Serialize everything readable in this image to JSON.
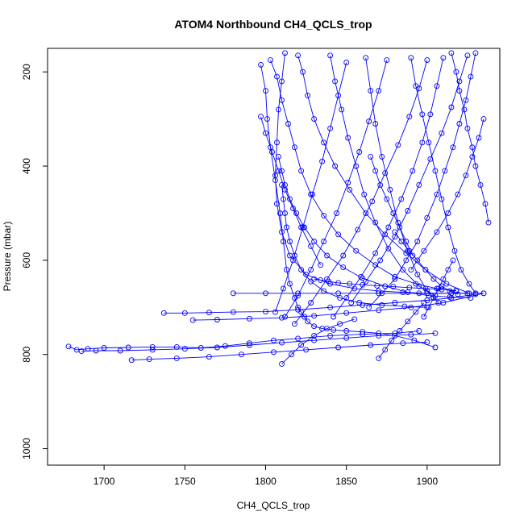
{
  "chart_data": {
    "type": "line",
    "title": "ATOM4 Northbound CH4_QCLS_trop",
    "xlabel": "CH4_QCLS_trop",
    "ylabel": "Pressure (mbar)",
    "xlim": [
      1665,
      1945
    ],
    "ylim": [
      1035,
      150
    ],
    "y_reversed": true,
    "marker": "open-circle",
    "series_color": "#0000ff",
    "x_ticks": [
      1700,
      1750,
      1800,
      1850,
      1900
    ],
    "y_ticks": [
      200,
      400,
      600,
      800,
      1000
    ],
    "x_tick_labels": [
      "1700",
      "1750",
      "1800",
      "1850",
      "1900"
    ],
    "y_tick_labels": [
      "200",
      "400",
      "600",
      "800",
      "1000"
    ],
    "series": [
      {
        "x": [
          1797,
          1800,
          1801,
          1803,
          1806,
          1809,
          1811,
          1813,
          1815,
          1818,
          1820,
          1822,
          1824,
          1826,
          1830,
          1835,
          1842,
          1850,
          1860,
          1870,
          1880,
          1892,
          1905
        ],
        "y": [
          185,
          240,
          300,
          360,
          430,
          500,
          560,
          620,
          650,
          680,
          700,
          710,
          720,
          730,
          740,
          745,
          748,
          750,
          752,
          755,
          760,
          770,
          785
        ]
      },
      {
        "x": [
          1812,
          1810,
          1808,
          1807,
          1806,
          1807,
          1810,
          1815,
          1825,
          1840,
          1855,
          1870,
          1885,
          1900,
          1915,
          1925
        ],
        "y": [
          160,
          220,
          280,
          350,
          420,
          480,
          540,
          590,
          630,
          650,
          660,
          665,
          668,
          670,
          670,
          670
        ]
      },
      {
        "x": [
          1678,
          1683,
          1690,
          1700,
          1715,
          1730,
          1745,
          1760,
          1775,
          1790,
          1805,
          1820,
          1840,
          1860,
          1880,
          1895
        ],
        "y": [
          783,
          790,
          788,
          786,
          785,
          784,
          784,
          786,
          782,
          776,
          770,
          766,
          760,
          757,
          755,
          750
        ]
      },
      {
        "x": [
          1686,
          1695,
          1710,
          1730,
          1750,
          1770,
          1790,
          1810,
          1830,
          1850,
          1870,
          1890,
          1905
        ],
        "y": [
          793,
          792,
          792,
          790,
          788,
          785,
          780,
          775,
          770,
          765,
          760,
          758,
          755
        ]
      },
      {
        "x": [
          1717,
          1728,
          1745,
          1765,
          1785,
          1805,
          1825,
          1845,
          1865,
          1885,
          1900
        ],
        "y": [
          812,
          810,
          808,
          805,
          800,
          795,
          790,
          785,
          780,
          776,
          774
        ]
      },
      {
        "x": [
          1737,
          1750,
          1765,
          1780,
          1800,
          1820,
          1840,
          1860,
          1880,
          1900,
          1915,
          1930
        ],
        "y": [
          712,
          712,
          711,
          710,
          709,
          705,
          700,
          695,
          690,
          685,
          680,
          672
        ]
      },
      {
        "x": [
          1755,
          1770,
          1790,
          1810,
          1830,
          1850,
          1870,
          1890,
          1910,
          1935
        ],
        "y": [
          727,
          726,
          724,
          722,
          718,
          712,
          706,
          700,
          690,
          670
        ]
      },
      {
        "x": [
          1780,
          1800,
          1820,
          1845,
          1870,
          1895,
          1915,
          1935
        ],
        "y": [
          670,
          670,
          670,
          670,
          670,
          670,
          670,
          670
        ]
      },
      {
        "x": [
          1803,
          1807,
          1810,
          1814,
          1818,
          1822,
          1828,
          1836,
          1845,
          1856,
          1868,
          1880,
          1893,
          1906,
          1918
        ],
        "y": [
          175,
          210,
          260,
          310,
          360,
          410,
          460,
          505,
          545,
          580,
          610,
          635,
          650,
          660,
          665
        ]
      },
      {
        "x": [
          1820,
          1823,
          1826,
          1830,
          1836,
          1843,
          1852,
          1862,
          1874,
          1887,
          1899,
          1912,
          1926
        ],
        "y": [
          165,
          200,
          250,
          300,
          350,
          400,
          450,
          500,
          545,
          585,
          620,
          650,
          670
        ]
      },
      {
        "x": [
          1840,
          1843,
          1847,
          1851,
          1856,
          1861,
          1868,
          1876,
          1885,
          1895,
          1905
        ],
        "y": [
          165,
          220,
          280,
          340,
          400,
          460,
          520,
          575,
          620,
          655,
          675
        ]
      },
      {
        "x": [
          1862,
          1865,
          1868,
          1872,
          1877,
          1882,
          1888,
          1894,
          1900,
          1907
        ],
        "y": [
          170,
          240,
          310,
          380,
          450,
          520,
          580,
          630,
          665,
          690
        ]
      },
      {
        "x": [
          1890,
          1893,
          1897,
          1901,
          1905,
          1909,
          1913,
          1917,
          1921,
          1926,
          1930
        ],
        "y": [
          170,
          230,
          290,
          350,
          410,
          470,
          530,
          580,
          620,
          650,
          670
        ]
      },
      {
        "x": [
          1915,
          1918,
          1920,
          1923,
          1925,
          1928,
          1930,
          1933,
          1936,
          1938
        ],
        "y": [
          160,
          200,
          240,
          280,
          320,
          360,
          400,
          440,
          480,
          520
        ]
      },
      {
        "x": [
          1930,
          1927,
          1924,
          1920,
          1916,
          1911,
          1906,
          1900,
          1894,
          1887,
          1880,
          1872,
          1864
        ],
        "y": [
          160,
          210,
          260,
          310,
          360,
          410,
          460,
          510,
          560,
          600,
          640,
          670,
          700
        ]
      },
      {
        "x": [
          1925,
          1920,
          1915,
          1909,
          1902,
          1895,
          1888,
          1880,
          1871,
          1862,
          1853
        ],
        "y": [
          165,
          220,
          275,
          330,
          385,
          440,
          495,
          550,
          600,
          645,
          690
        ]
      },
      {
        "x": [
          1910,
          1906,
          1902,
          1897,
          1891,
          1884,
          1876,
          1868,
          1859,
          1850,
          1842
        ],
        "y": [
          170,
          230,
          290,
          350,
          410,
          470,
          530,
          585,
          635,
          680,
          720
        ]
      },
      {
        "x": [
          1900,
          1895,
          1889,
          1882,
          1874,
          1866,
          1857,
          1848,
          1838,
          1828,
          1818
        ],
        "y": [
          175,
          235,
          295,
          355,
          415,
          475,
          535,
          590,
          640,
          690,
          735
        ]
      },
      {
        "x": [
          1875,
          1870,
          1864,
          1858,
          1851,
          1844,
          1836,
          1828,
          1820,
          1812
        ],
        "y": [
          175,
          240,
          305,
          370,
          435,
          500,
          560,
          620,
          675,
          720
        ]
      },
      {
        "x": [
          1850,
          1845,
          1840,
          1835,
          1829,
          1823,
          1817,
          1811,
          1806
        ],
        "y": [
          180,
          250,
          320,
          390,
          460,
          530,
          600,
          660,
          710
        ]
      },
      {
        "x": [
          1808,
          1810,
          1812,
          1815,
          1819,
          1824,
          1830,
          1838,
          1848,
          1860,
          1874,
          1888,
          1901,
          1914,
          1927
        ],
        "y": [
          380,
          410,
          440,
          470,
          500,
          530,
          560,
          590,
          615,
          638,
          655,
          668,
          675,
          678,
          680
        ]
      },
      {
        "x": [
          1810,
          1811,
          1812,
          1813,
          1815,
          1818,
          1822,
          1828,
          1836,
          1846,
          1858,
          1872,
          1886,
          1900
        ],
        "y": [
          440,
          470,
          500,
          530,
          560,
          590,
          620,
          645,
          665,
          680,
          690,
          695,
          698,
          700
        ]
      },
      {
        "x": [
          1830,
          1834,
          1839,
          1845,
          1852,
          1860,
          1869,
          1879,
          1889,
          1899,
          1909,
          1918
        ],
        "y": [
          640,
          642,
          645,
          648,
          650,
          652,
          654,
          656,
          658,
          660,
          662,
          664
        ]
      },
      {
        "x": [
          1797,
          1800,
          1804,
          1808,
          1812,
          1817,
          1822,
          1828,
          1834
        ],
        "y": [
          295,
          330,
          370,
          410,
          450,
          490,
          530,
          570,
          610
        ]
      },
      {
        "x": [
          1870,
          1874,
          1878,
          1883,
          1888,
          1893,
          1898
        ],
        "y": [
          808,
          790,
          770,
          750,
          730,
          710,
          690
        ]
      },
      {
        "x": [
          1810,
          1816,
          1822,
          1830,
          1838,
          1846,
          1855
        ],
        "y": [
          820,
          800,
          780,
          760,
          745,
          735,
          725
        ]
      },
      {
        "x": [
          1880,
          1884,
          1889,
          1894,
          1899,
          1904,
          1909,
          1914,
          1919
        ],
        "y": [
          540,
          560,
          580,
          600,
          620,
          640,
          655,
          665,
          672
        ]
      },
      {
        "x": [
          1935,
          1932,
          1928,
          1924,
          1919,
          1913,
          1906,
          1898,
          1890
        ],
        "y": [
          300,
          340,
          380,
          420,
          460,
          500,
          540,
          580,
          620
        ]
      },
      {
        "x": [
          1898,
          1901,
          1904,
          1907,
          1910,
          1913,
          1916
        ],
        "y": [
          720,
          700,
          680,
          660,
          640,
          620,
          600
        ]
      },
      {
        "x": [
          1865,
          1868,
          1871,
          1875,
          1879,
          1883,
          1887,
          1891
        ],
        "y": [
          380,
          410,
          440,
          470,
          500,
          530,
          560,
          590
        ]
      }
    ]
  }
}
